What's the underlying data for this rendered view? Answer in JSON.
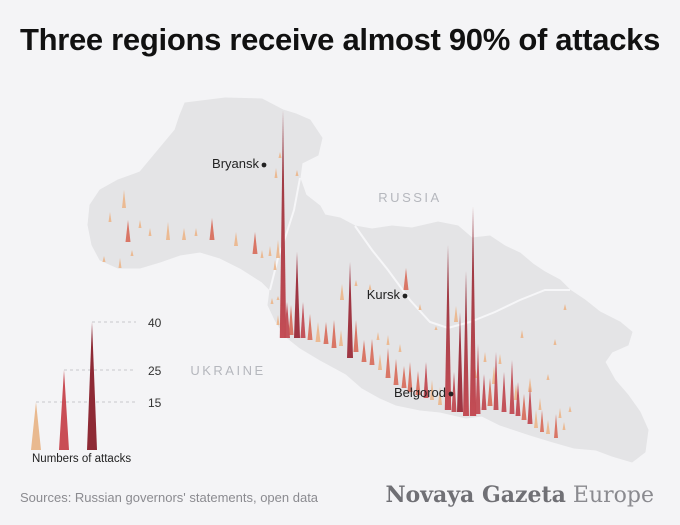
{
  "title": "Three regions receive almost 90% of attacks",
  "labels": {
    "russia": "RUSSIA",
    "ukraine": "UKRAINE",
    "cities": [
      {
        "name": "Bryansk"
      },
      {
        "name": "Kursk"
      },
      {
        "name": "Belgorod"
      }
    ]
  },
  "legend": {
    "title": "Numbers of attacks",
    "levels": [
      {
        "label": "40",
        "value": 40,
        "color": "#8e2a35"
      },
      {
        "label": "25",
        "value": 25,
        "color": "#c94d55"
      },
      {
        "label": "15",
        "value": 15,
        "color": "#e9b98f"
      }
    ]
  },
  "footer": {
    "source": "Sources: Russian governors' statements, open data",
    "brand_bold": "Novaya Gazeta",
    "brand_light": "Europe"
  },
  "colors": {
    "low": "#ebb78e",
    "mid": "#d8705f",
    "high": "#9b2c3a",
    "land": "#e4e4e6"
  }
}
